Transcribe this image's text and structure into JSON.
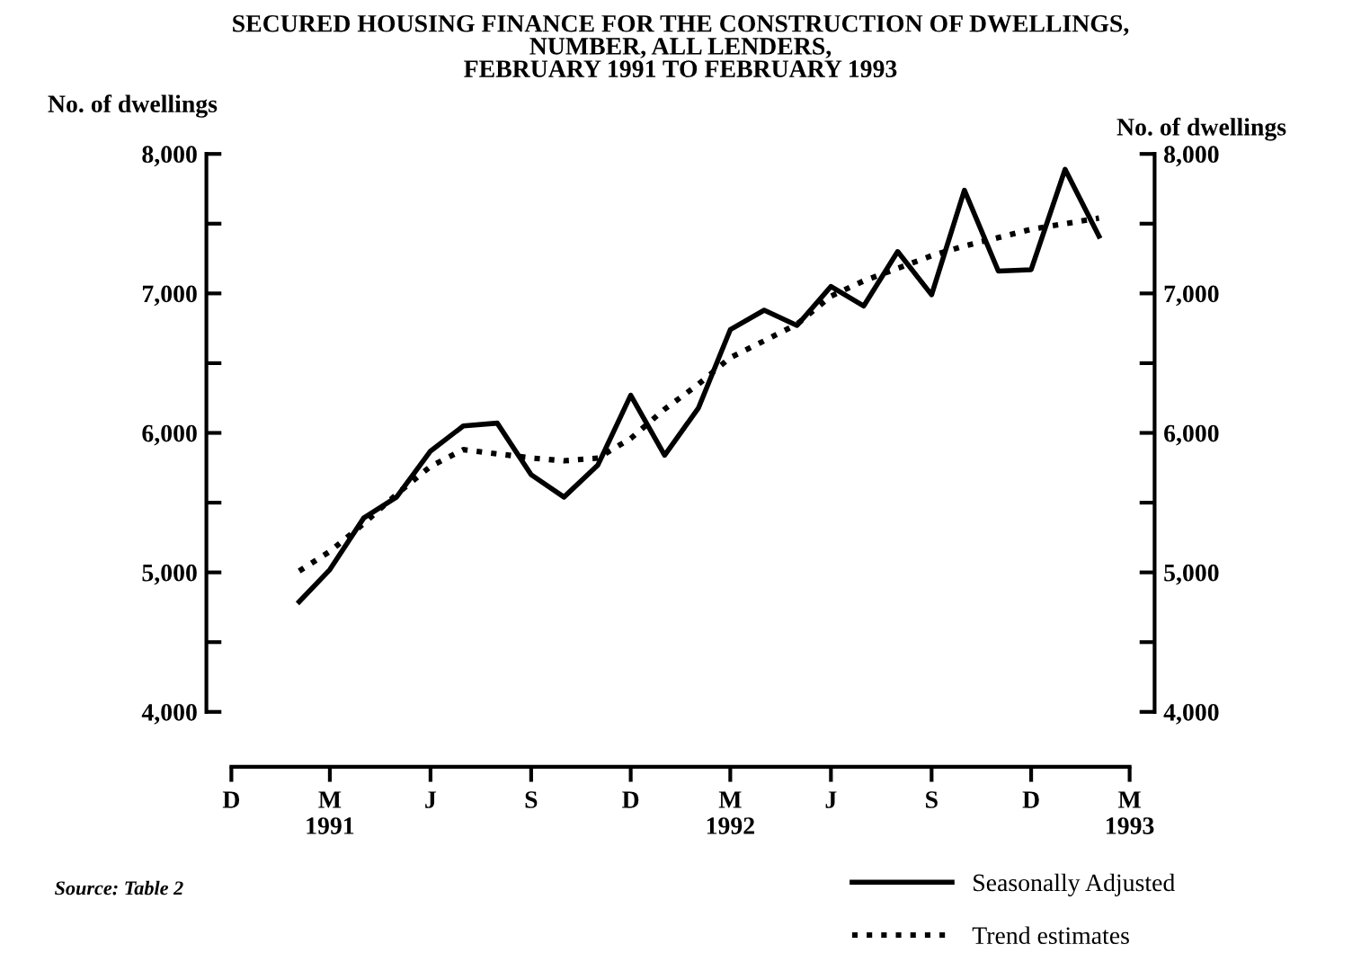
{
  "chart_data": {
    "type": "line",
    "title": "SECURED HOUSING FINANCE FOR THE CONSTRUCTION OF DWELLINGS,\nNUMBER, ALL LENDERS,\nFEBRUARY 1991 TO FEBRUARY 1993",
    "ylabel": "No. of dwellings",
    "y2label": "No. of dwellings",
    "x": [
      "1991-02",
      "1991-03",
      "1991-04",
      "1991-05",
      "1991-06",
      "1991-07",
      "1991-08",
      "1991-09",
      "1991-10",
      "1991-11",
      "1991-12",
      "1992-01",
      "1992-02",
      "1992-03",
      "1992-04",
      "1992-05",
      "1992-06",
      "1992-07",
      "1992-08",
      "1992-09",
      "1992-10",
      "1992-11",
      "1992-12",
      "1993-01",
      "1993-02"
    ],
    "series": [
      {
        "name": "Seasonally Adjusted",
        "color": "#000000",
        "line_style": "solid",
        "values": [
          4790,
          5020,
          5390,
          5540,
          5870,
          6050,
          6070,
          5700,
          5540,
          5770,
          6270,
          5840,
          6180,
          6740,
          6880,
          6770,
          7050,
          6910,
          7300,
          6990,
          7740,
          7160,
          7170,
          7890,
          7410
        ]
      },
      {
        "name": "Trend estimates",
        "color": "#000000",
        "line_style": "dotted",
        "values": [
          5010,
          5150,
          5350,
          5560,
          5760,
          5880,
          5850,
          5820,
          5800,
          5820,
          5960,
          6170,
          6350,
          6540,
          6660,
          6780,
          6980,
          7090,
          7180,
          7270,
          7340,
          7400,
          7460,
          7500,
          7540
        ]
      }
    ],
    "xlim": [
      "1990-12",
      "1993-03"
    ],
    "xticks": [
      {
        "value": "1990-12",
        "label": "D"
      },
      {
        "value": "1991-03",
        "label": "M\n1991"
      },
      {
        "value": "1991-06",
        "label": "J"
      },
      {
        "value": "1991-09",
        "label": "S"
      },
      {
        "value": "1991-12",
        "label": "D"
      },
      {
        "value": "1992-03",
        "label": "M\n1992"
      },
      {
        "value": "1992-06",
        "label": "J"
      },
      {
        "value": "1992-09",
        "label": "S"
      },
      {
        "value": "1992-12",
        "label": "D"
      },
      {
        "value": "1993-03",
        "label": "M\n1993"
      }
    ],
    "ylim": [
      4000,
      8000
    ],
    "yticks": [
      {
        "value": 4000,
        "label": "4,000"
      },
      {
        "value": 4500,
        "label": null
      },
      {
        "value": 5000,
        "label": "5,000"
      },
      {
        "value": 5500,
        "label": null
      },
      {
        "value": 6000,
        "label": "6,000"
      },
      {
        "value": 6500,
        "label": null
      },
      {
        "value": 7000,
        "label": "7,000"
      },
      {
        "value": 7500,
        "label": null
      },
      {
        "value": 8000,
        "label": "8,000"
      }
    ],
    "y2lim": [
      4000,
      8000
    ],
    "y2ticks": [
      {
        "value": 4000,
        "label": "4,000"
      },
      {
        "value": 4500,
        "label": null
      },
      {
        "value": 5000,
        "label": "5,000"
      },
      {
        "value": 5500,
        "label": null
      },
      {
        "value": 6000,
        "label": "6,000"
      },
      {
        "value": 6500,
        "label": null
      },
      {
        "value": 7000,
        "label": "7,000"
      },
      {
        "value": 7500,
        "label": null
      },
      {
        "value": 8000,
        "label": "8,000"
      }
    ],
    "annotations": [
      "Source: Table 2"
    ],
    "legend": "bottom right",
    "grid": false
  }
}
